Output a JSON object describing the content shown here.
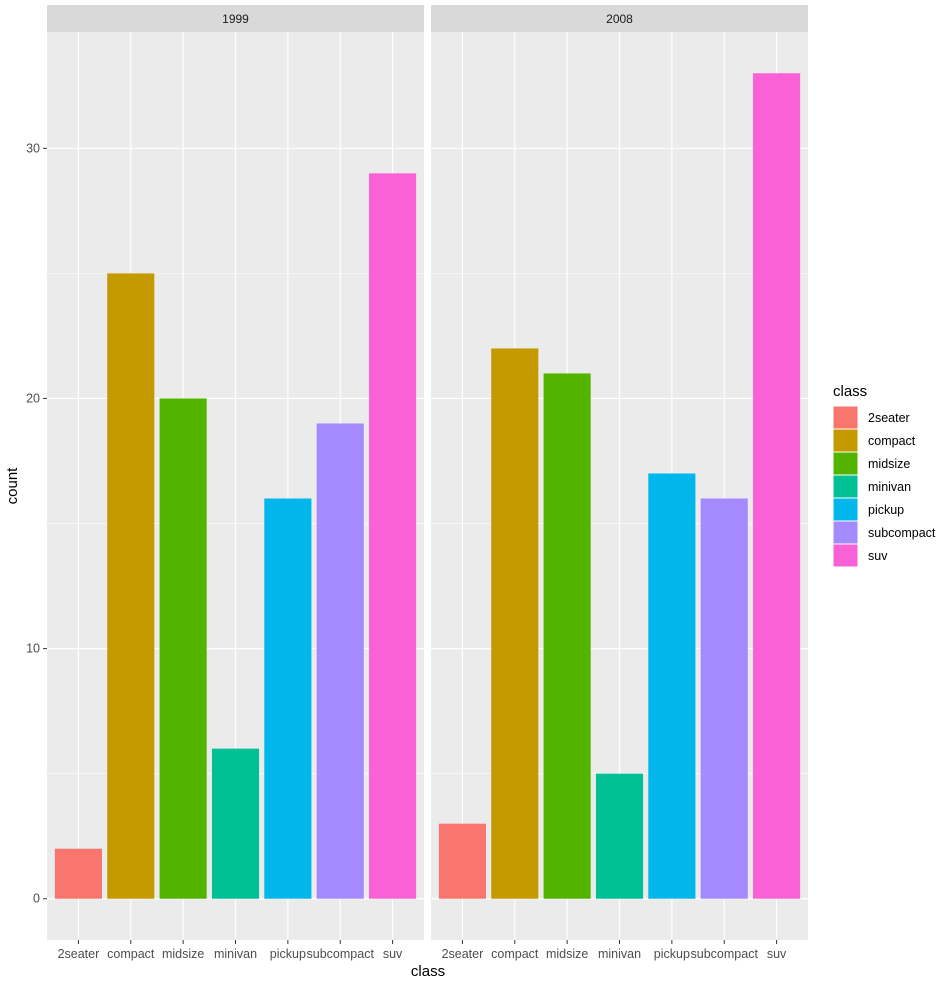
{
  "chart_data": {
    "type": "bar",
    "xlabel": "class",
    "ylabel": "count",
    "ylim": [
      -1.65,
      34.65
    ],
    "yticks": [
      0,
      10,
      20,
      30
    ],
    "grid": true,
    "legend_position": "right",
    "legend_title": "class",
    "categories": [
      "2seater",
      "compact",
      "midsize",
      "minivan",
      "pickup",
      "subcompact",
      "suv"
    ],
    "colors": [
      "#F8766D",
      "#C49A00",
      "#53B400",
      "#00C094",
      "#00B6EB",
      "#A58AFF",
      "#FB61D7"
    ],
    "facets": [
      {
        "label": "1999",
        "values": [
          2,
          25,
          20,
          6,
          16,
          19,
          29
        ]
      },
      {
        "label": "2008",
        "values": [
          3,
          22,
          21,
          5,
          17,
          16,
          33
        ]
      }
    ]
  }
}
